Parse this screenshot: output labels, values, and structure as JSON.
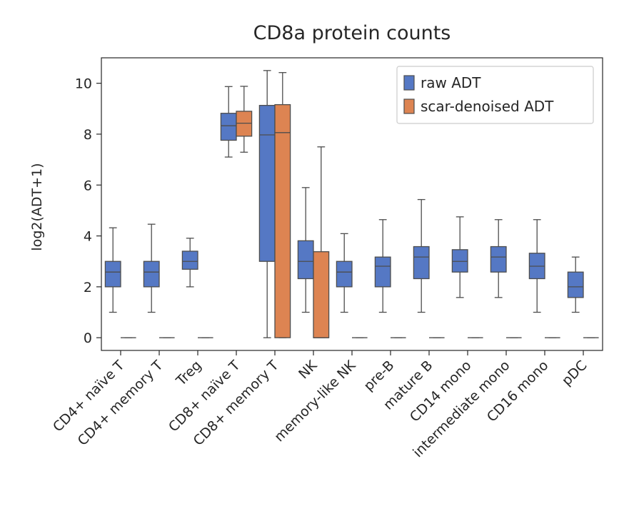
{
  "chart_data": {
    "type": "box",
    "title": "CD8a protein counts",
    "xlabel": "",
    "ylabel": "log2(ADT+1)",
    "ylim": [
      -0.5,
      11
    ],
    "yticks": [
      0,
      2,
      4,
      6,
      8,
      10
    ],
    "grid": false,
    "legend_position": "top-right",
    "categories": [
      "CD4+ naïve T",
      "CD4+ memory T",
      "Treg",
      "CD8+ naïve T",
      "CD8+ memory T",
      "NK",
      "memory-like NK",
      "pre-B",
      "mature B",
      "CD14 mono",
      "intermediate mono",
      "CD16 mono",
      "pDC"
    ],
    "series": [
      {
        "name": "raw ADT",
        "color": "#5578c4",
        "boxes": [
          {
            "whislo": 1.0,
            "q1": 2.0,
            "med": 2.58,
            "q3": 3.0,
            "whishi": 4.32
          },
          {
            "whislo": 1.0,
            "q1": 2.0,
            "med": 2.58,
            "q3": 3.0,
            "whishi": 4.46
          },
          {
            "whislo": 2.0,
            "q1": 2.69,
            "med": 3.0,
            "q3": 3.4,
            "whishi": 3.91
          },
          {
            "whislo": 7.1,
            "q1": 7.76,
            "med": 8.33,
            "q3": 8.82,
            "whishi": 9.87
          },
          {
            "whislo": 0.0,
            "q1": 3.0,
            "med": 7.97,
            "q3": 9.13,
            "whishi": 10.5
          },
          {
            "whislo": 1.0,
            "q1": 2.32,
            "med": 3.0,
            "q3": 3.81,
            "whishi": 5.9
          },
          {
            "whislo": 1.0,
            "q1": 2.0,
            "med": 2.58,
            "q3": 3.0,
            "whishi": 4.09
          },
          {
            "whislo": 1.0,
            "q1": 2.0,
            "med": 2.81,
            "q3": 3.17,
            "whishi": 4.64
          },
          {
            "whislo": 1.0,
            "q1": 2.32,
            "med": 3.17,
            "q3": 3.58,
            "whishi": 5.43
          },
          {
            "whislo": 1.58,
            "q1": 2.58,
            "med": 3.0,
            "q3": 3.46,
            "whishi": 4.75
          },
          {
            "whislo": 1.58,
            "q1": 2.58,
            "med": 3.17,
            "q3": 3.58,
            "whishi": 4.64
          },
          {
            "whislo": 1.0,
            "q1": 2.32,
            "med": 2.81,
            "q3": 3.32,
            "whishi": 4.64
          },
          {
            "whislo": 1.0,
            "q1": 1.58,
            "med": 2.0,
            "q3": 2.58,
            "whishi": 3.17
          }
        ]
      },
      {
        "name": "scar-denoised ADT",
        "color": "#dd8452",
        "boxes": [
          {
            "whislo": 0,
            "q1": 0,
            "med": 0,
            "q3": 0,
            "whishi": 0
          },
          {
            "whislo": 0,
            "q1": 0,
            "med": 0,
            "q3": 0,
            "whishi": 0
          },
          {
            "whislo": 0,
            "q1": 0,
            "med": 0,
            "q3": 0,
            "whishi": 0
          },
          {
            "whislo": 7.29,
            "q1": 7.92,
            "med": 8.43,
            "q3": 8.9,
            "whishi": 9.88
          },
          {
            "whislo": 0.0,
            "q1": 0.0,
            "med": 8.06,
            "q3": 9.16,
            "whishi": 10.42
          },
          {
            "whislo": 0.0,
            "q1": 0.0,
            "med": 0.0,
            "q3": 3.38,
            "whishi": 7.5
          },
          {
            "whislo": 0,
            "q1": 0,
            "med": 0,
            "q3": 0,
            "whishi": 0
          },
          {
            "whislo": 0,
            "q1": 0,
            "med": 0,
            "q3": 0,
            "whishi": 0
          },
          {
            "whislo": 0,
            "q1": 0,
            "med": 0,
            "q3": 0,
            "whishi": 0
          },
          {
            "whislo": 0,
            "q1": 0,
            "med": 0,
            "q3": 0,
            "whishi": 0
          },
          {
            "whislo": 0,
            "q1": 0,
            "med": 0,
            "q3": 0,
            "whishi": 0
          },
          {
            "whislo": 0,
            "q1": 0,
            "med": 0,
            "q3": 0,
            "whishi": 0
          },
          {
            "whislo": 0,
            "q1": 0,
            "med": 0,
            "q3": 0,
            "whishi": 0
          }
        ]
      }
    ]
  }
}
